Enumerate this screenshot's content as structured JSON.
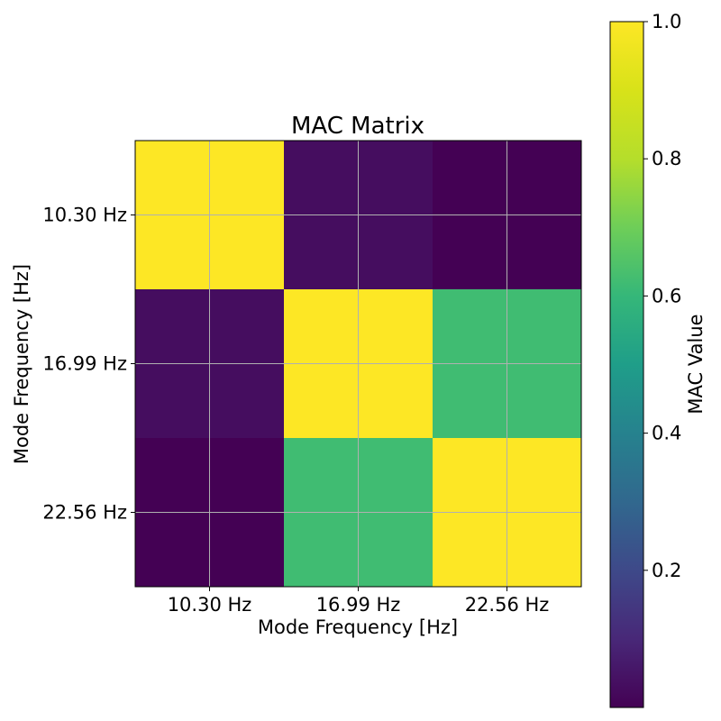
{
  "chart_data": {
    "type": "heatmap",
    "title": "MAC Matrix",
    "xlabel": "Mode Frequency [Hz]",
    "ylabel": "Mode Frequency [Hz]",
    "x_categories": [
      "10.30 Hz",
      "16.99 Hz",
      "22.56 Hz"
    ],
    "y_categories": [
      "10.30 Hz",
      "16.99 Hz",
      "22.56 Hz"
    ],
    "values": [
      [
        1.0,
        0.03,
        0.0
      ],
      [
        0.03,
        1.0,
        0.62
      ],
      [
        0.0,
        0.62,
        1.0
      ]
    ],
    "grid": true,
    "colormap": "viridis",
    "colorbar": {
      "label": "MAC Value",
      "range": [
        0.0,
        1.0
      ],
      "ticks": [
        0.2,
        0.4,
        0.6,
        0.8,
        1.0
      ],
      "tick_labels": [
        "0.2",
        "0.4",
        "0.6",
        "0.8",
        "1.0"
      ]
    }
  }
}
